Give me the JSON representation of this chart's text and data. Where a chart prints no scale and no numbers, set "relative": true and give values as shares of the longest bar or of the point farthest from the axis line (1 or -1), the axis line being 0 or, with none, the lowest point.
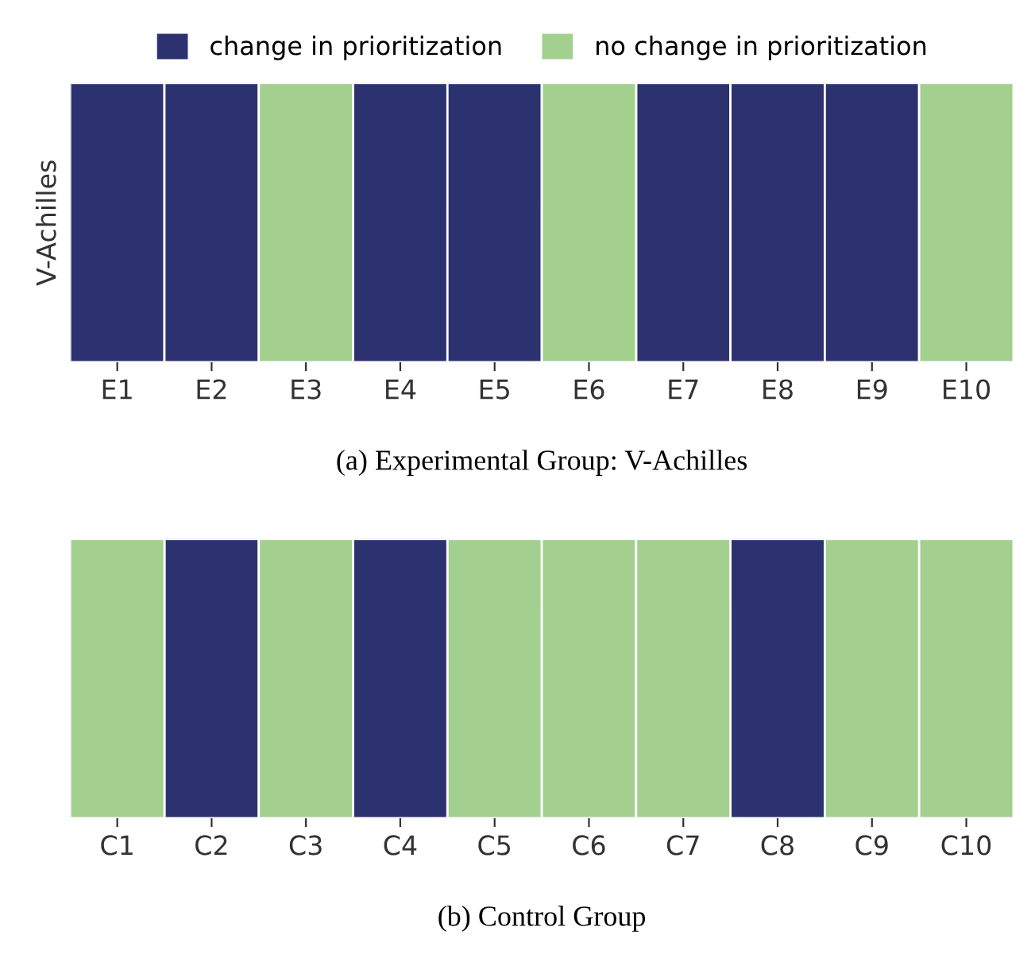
{
  "chart_data": [
    {
      "type": "bar",
      "relative": true,
      "title": "(a) Experimental Group: V-Achilles",
      "ylabel": "V-Achilles",
      "categories": [
        "E1",
        "E2",
        "E3",
        "E4",
        "E5",
        "E6",
        "E7",
        "E8",
        "E9",
        "E10"
      ],
      "legend": "top",
      "series": [
        {
          "name": "change in prioritization",
          "color": "#2c3170",
          "values": [
            1,
            1,
            null,
            1,
            1,
            null,
            1,
            1,
            1,
            null
          ]
        },
        {
          "name": "no change in prioritization",
          "color": "#a3cf8f",
          "values": [
            null,
            null,
            1,
            null,
            null,
            1,
            null,
            null,
            null,
            1
          ]
        }
      ]
    },
    {
      "type": "bar",
      "relative": true,
      "title": "(b) Control Group",
      "categories": [
        "C1",
        "C2",
        "C3",
        "C4",
        "C5",
        "C6",
        "C7",
        "C8",
        "C9",
        "C10"
      ],
      "series": [
        {
          "color": "#2c3170",
          "values": [
            null,
            1,
            null,
            1,
            null,
            null,
            null,
            1,
            null,
            null
          ]
        },
        {
          "color": "#a3cf8f",
          "values": [
            1,
            null,
            1,
            null,
            1,
            1,
            1,
            null,
            1,
            1
          ]
        }
      ]
    }
  ]
}
